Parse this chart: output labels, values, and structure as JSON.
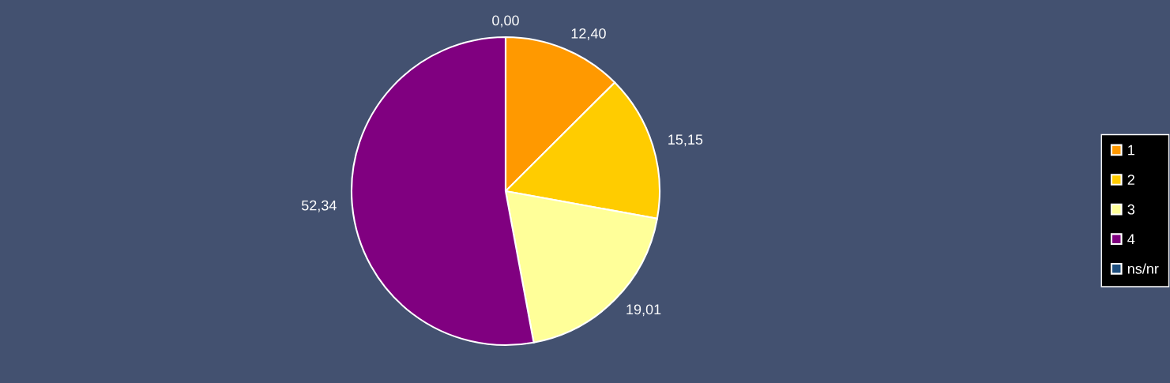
{
  "chart_data": {
    "type": "pie",
    "categories": [
      "1",
      "2",
      "3",
      "4",
      "ns/nr"
    ],
    "values": [
      12.4,
      15.15,
      19.01,
      52.34,
      0.0
    ],
    "colors": [
      "#ff9900",
      "#ffcc00",
      "#ffff99",
      "#800080",
      "#1f4f7f"
    ],
    "value_labels": [
      "12,40",
      "15,15",
      "19,01",
      "52,34",
      "0,00"
    ],
    "legend": "right"
  }
}
